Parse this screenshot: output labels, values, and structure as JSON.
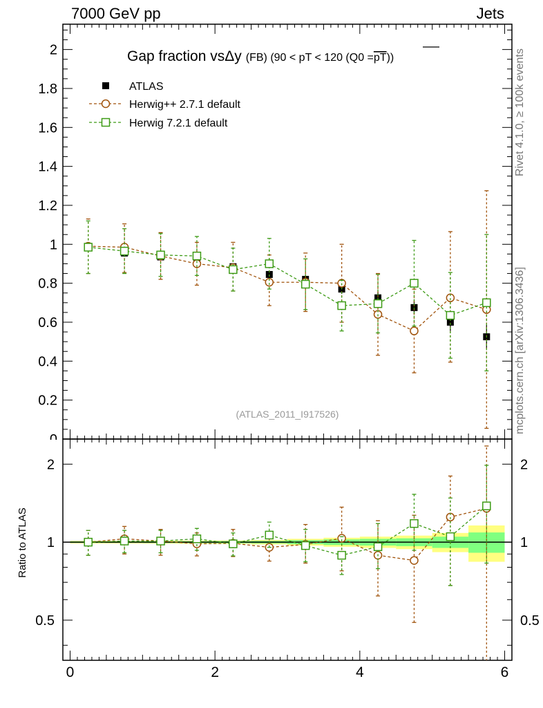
{
  "header": {
    "left": "7000 GeV pp",
    "right": "Jets"
  },
  "side_labels": {
    "rivet": "Rivet 4.1.0, ≥ 100k events",
    "mcplots": "mcplots.cern.ch [arXiv:1306.3436]"
  },
  "colors": {
    "atlas": "#000000",
    "herwigpp": "#a0520a",
    "herwig7": "#3c9a14",
    "band_outer": "#ffff80",
    "band_inner": "#80ff80"
  },
  "chart_data": [
    {
      "type": "scatter",
      "title": "Gap fraction vsΔy",
      "title_sub": "(FB)  (90 < pT < 120 (Q0 =",
      "title_pt": "pT",
      "title_end": "))",
      "xlabel": "",
      "ylabel": "",
      "xlim": [
        -0.1,
        6.1
      ],
      "ylim": [
        0,
        2.13
      ],
      "yticks": [
        0.2,
        0.4,
        0.6,
        0.8,
        1,
        1.2,
        1.4,
        1.6,
        1.8,
        2
      ],
      "ytick_labels": [
        "0.2",
        "0.4",
        "0.6",
        "0.8",
        "1",
        "1.2",
        "1.4",
        "1.6",
        "1.8",
        "2"
      ],
      "ytick_zero_label": "0",
      "watermark": "(ATLAS_2011_I917526)",
      "legend_position": "top-left",
      "x": [
        0.25,
        0.75,
        1.25,
        1.75,
        2.25,
        2.75,
        3.25,
        3.75,
        4.25,
        4.75,
        5.25,
        5.75
      ],
      "series": [
        {
          "name": "ATLAS",
          "marker": "filled-square",
          "values": [
            0.985,
            0.955,
            0.935,
            0.91,
            0.885,
            0.845,
            0.82,
            0.77,
            0.725,
            0.675,
            0.6,
            0.525
          ],
          "err_low": [
            0.01,
            0.01,
            0.01,
            0.01,
            0.01,
            0.015,
            0.02,
            0.025,
            0.03,
            0.035,
            0.045,
            0.06
          ],
          "err_high": [
            0.01,
            0.01,
            0.01,
            0.01,
            0.01,
            0.015,
            0.02,
            0.025,
            0.03,
            0.035,
            0.045,
            0.06
          ]
        },
        {
          "name": "Herwig++ 2.7.1 default",
          "marker": "open-circle",
          "values": [
            0.99,
            0.985,
            0.94,
            0.9,
            0.88,
            0.805,
            0.805,
            0.8,
            0.64,
            0.555,
            0.725,
            0.665
          ],
          "err_low": [
            0.14,
            0.13,
            0.12,
            0.11,
            0.12,
            0.12,
            0.15,
            0.2,
            0.21,
            0.215,
            0.33,
            0.61
          ],
          "err_high": [
            0.14,
            0.12,
            0.12,
            0.11,
            0.13,
            0.14,
            0.15,
            0.2,
            0.21,
            0.215,
            0.34,
            0.61
          ]
        },
        {
          "name": "Herwig 7.2.1 default",
          "marker": "open-square",
          "values": [
            0.985,
            0.965,
            0.945,
            0.94,
            0.87,
            0.9,
            0.795,
            0.685,
            0.695,
            0.8,
            0.635,
            0.7
          ],
          "err_low": [
            0.135,
            0.115,
            0.11,
            0.1,
            0.11,
            0.13,
            0.13,
            0.13,
            0.15,
            0.22,
            0.22,
            0.35
          ],
          "err_high": [
            0.135,
            0.115,
            0.11,
            0.1,
            0.11,
            0.13,
            0.13,
            0.13,
            0.15,
            0.22,
            0.22,
            0.35
          ]
        }
      ]
    },
    {
      "type": "scatter",
      "title": "",
      "ylabel": "Ratio to ATLAS",
      "xlabel": "",
      "yscale": "log",
      "xlim": [
        -0.1,
        6.1
      ],
      "ylim": [
        0.35,
        2.5
      ],
      "xticks": [
        0,
        2,
        4,
        6
      ],
      "xtick_labels": [
        "0",
        "2",
        "4",
        "6"
      ],
      "yticks": [
        0.5,
        1,
        2
      ],
      "ytick_labels": [
        "0.5",
        "1",
        "2"
      ],
      "reference_line": 1,
      "bands": {
        "x_edges": [
          0,
          0.5,
          1,
          1.5,
          2,
          2.5,
          3,
          3.5,
          4,
          4.5,
          5,
          5.5,
          6
        ],
        "outer": [
          0.012,
          0.012,
          0.013,
          0.014,
          0.015,
          0.02,
          0.03,
          0.04,
          0.05,
          0.06,
          0.085,
          0.16
        ],
        "inner": [
          0.007,
          0.007,
          0.008,
          0.009,
          0.01,
          0.012,
          0.018,
          0.025,
          0.03,
          0.035,
          0.05,
          0.09
        ]
      },
      "x": [
        0.25,
        0.75,
        1.25,
        1.75,
        2.25,
        2.75,
        3.25,
        3.75,
        4.25,
        4.75,
        5.25,
        5.75
      ],
      "series": [
        {
          "name": "Herwig++ 2.7.1 default",
          "marker": "open-circle",
          "values": [
            1.0,
            1.03,
            1.01,
            0.985,
            0.99,
            0.955,
            0.98,
            1.035,
            0.89,
            0.85,
            1.25,
            1.35
          ],
          "err_low": [
            0.11,
            0.13,
            0.12,
            0.1,
            0.11,
            0.11,
            0.15,
            0.26,
            0.27,
            0.36,
            0.57,
            1.05
          ],
          "err_high": [
            0.11,
            0.12,
            0.11,
            0.1,
            0.13,
            0.13,
            0.19,
            0.33,
            0.32,
            0.42,
            0.55,
            1.0
          ]
        },
        {
          "name": "Herwig 7.2.1 default",
          "marker": "open-square",
          "values": [
            1.0,
            1.01,
            1.01,
            1.03,
            0.985,
            1.065,
            0.97,
            0.89,
            0.96,
            1.18,
            1.05,
            1.38
          ],
          "err_low": [
            0.11,
            0.1,
            0.1,
            0.1,
            0.1,
            0.11,
            0.13,
            0.14,
            0.17,
            0.25,
            0.37,
            0.55
          ],
          "err_high": [
            0.11,
            0.1,
            0.1,
            0.1,
            0.1,
            0.13,
            0.15,
            0.16,
            0.22,
            0.35,
            0.43,
            0.6
          ]
        }
      ]
    }
  ]
}
